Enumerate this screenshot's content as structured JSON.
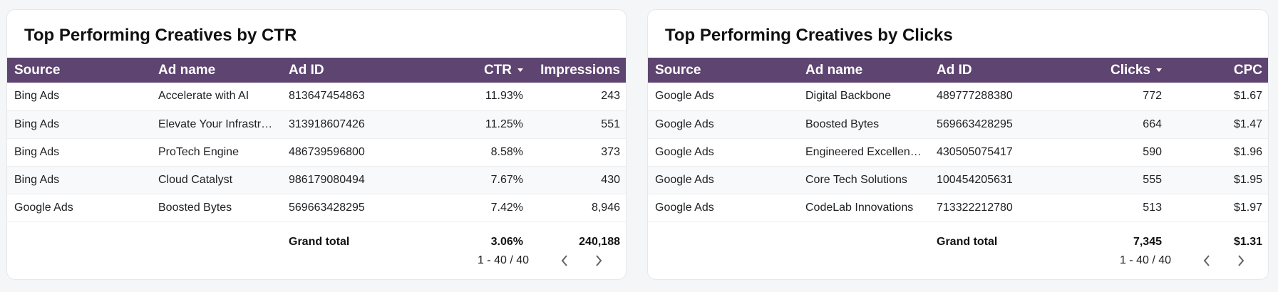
{
  "ctr_card": {
    "title": "Top Performing Creatives by CTR",
    "columns": [
      "Source",
      "Ad name",
      "Ad ID",
      "CTR",
      "Impressions"
    ],
    "rows": [
      [
        "Bing Ads",
        "Accelerate with AI",
        "813647454863",
        "11.93%",
        "243"
      ],
      [
        "Bing Ads",
        "Elevate Your Infrastr…",
        "313918607426",
        "11.25%",
        "551"
      ],
      [
        "Bing Ads",
        "ProTech Engine",
        "486739596800",
        "8.58%",
        "373"
      ],
      [
        "Bing Ads",
        "Cloud Catalyst",
        "986179080494",
        "7.67%",
        "430"
      ],
      [
        "Google Ads",
        "Boosted Bytes",
        "569663428295",
        "7.42%",
        "8,946"
      ]
    ],
    "total": {
      "label": "Grand total",
      "ctr": "3.06%",
      "impressions": "240,188"
    },
    "pagination": "1 - 40 / 40"
  },
  "clicks_card": {
    "title": "Top Performing Creatives by Clicks",
    "columns": [
      "Source",
      "Ad name",
      "Ad ID",
      "Clicks",
      "CPC"
    ],
    "rows": [
      [
        "Google Ads",
        "Digital Backbone",
        "489777288380",
        "772",
        "$1.67"
      ],
      [
        "Google Ads",
        "Boosted Bytes",
        "569663428295",
        "664",
        "$1.47"
      ],
      [
        "Google Ads",
        "Engineered Excellen…",
        "430505075417",
        "590",
        "$1.96"
      ],
      [
        "Google Ads",
        "Core Tech Solutions",
        "100454205631",
        "555",
        "$1.95"
      ],
      [
        "Google Ads",
        "CodeLab Innovations",
        "713322212780",
        "513",
        "$1.97"
      ]
    ],
    "total": {
      "label": "Grand total",
      "clicks": "7,345",
      "cpc": "$1.31"
    },
    "pagination": "1 - 40 / 40"
  },
  "theme": {
    "header_bg": "#5e4470",
    "page_bg": "#f4f6f7"
  },
  "icons": {
    "sort": "sort-desc-icon",
    "prev": "chevron-left-icon",
    "next": "chevron-right-icon"
  }
}
